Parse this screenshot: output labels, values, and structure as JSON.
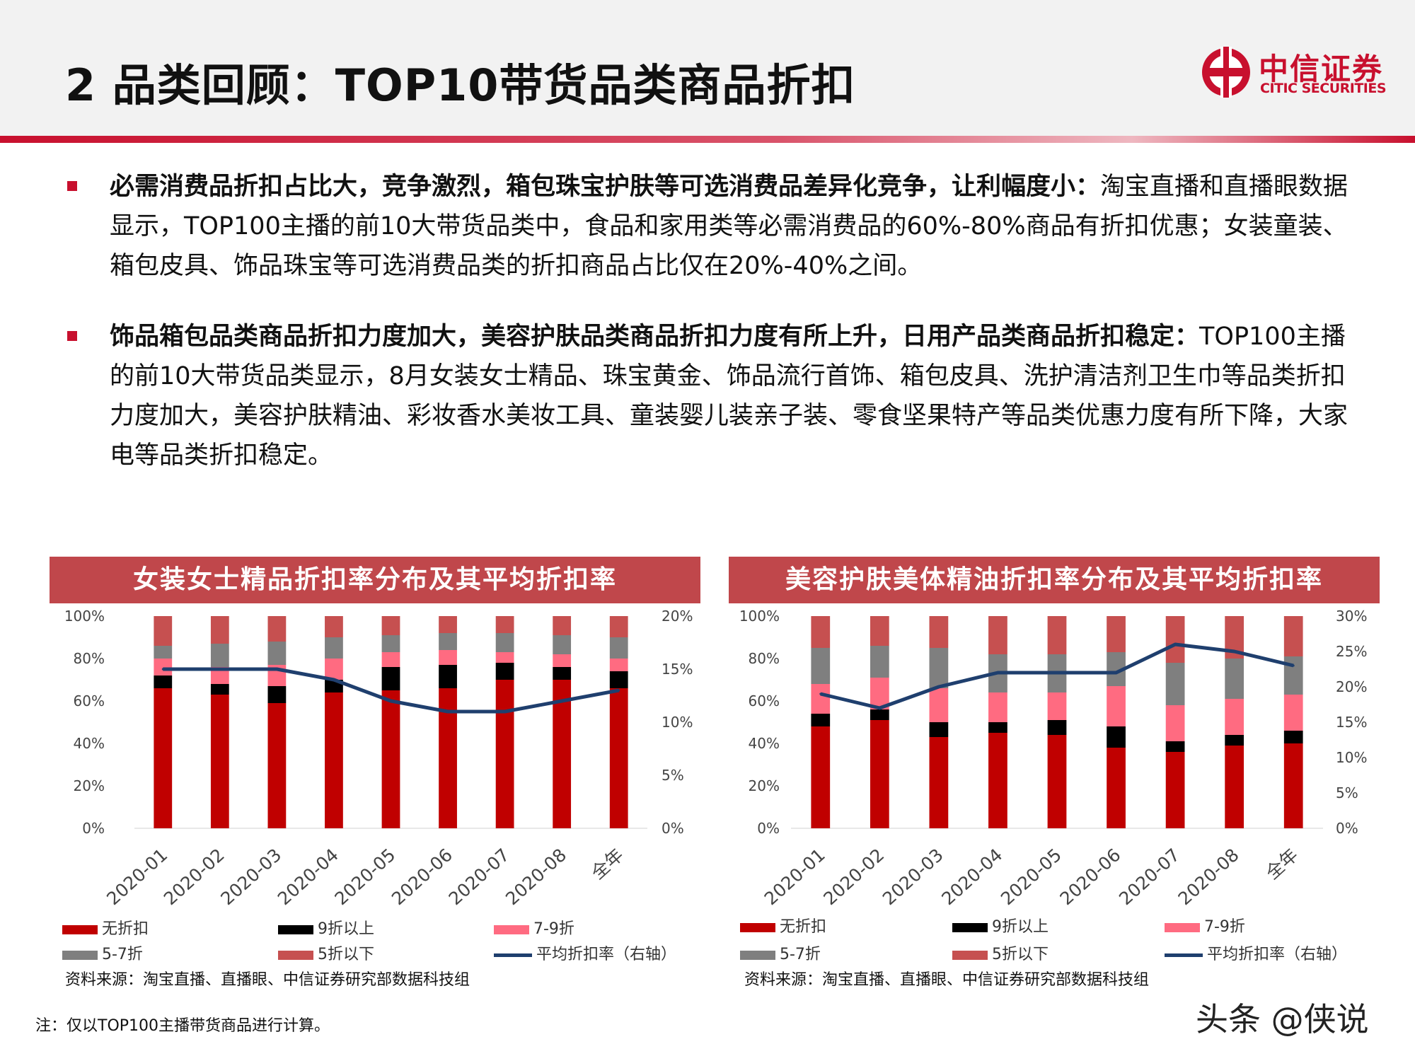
{
  "header": {
    "title": "2 品类回顾：TOP10带货品类商品折扣",
    "logo_cn": "中信证券",
    "logo_en": "CITIC SECURITIES",
    "logo_icon": "citic-logo-icon"
  },
  "bullets": [
    {
      "bold": "必需消费品折扣占比大，竞争激烈，箱包珠宝护肤等可选消费品差异化竞争，让利幅度小：",
      "text": "淘宝直播和直播眼数据显示，TOP100主播的前10大带货品类中，食品和家用类等必需消费品的60%-80%商品有折扣优惠；女装童装、箱包皮具、饰品珠宝等可选消费品类的折扣商品占比仅在20%-40%之间。"
    },
    {
      "bold": "饰品箱包品类商品折扣力度加大，美容护肤品类商品折扣力度有所上升，日用产品类商品折扣稳定：",
      "text": "TOP100主播的前10大带货品类显示，8月女装女士精品、珠宝黄金、饰品流行首饰、箱包皮具、洗护清洁剂卫生巾等品类折扣力度加大，美容护肤精油、彩妆香水美妆工具、童装婴儿装亲子装、零食坚果特产等品类优惠力度有所下降，大家电等品类折扣稳定。"
    }
  ],
  "colors": {
    "no_discount": "#c00000",
    "above_9": "#000000",
    "d7_9": "#ff6b81",
    "d5_7": "#7f7f7f",
    "below_5": "#c65050",
    "avg_line": "#1f3f6e"
  },
  "legend_labels": [
    "无折扣",
    "9折以上",
    "7-9折",
    "5-7折",
    "5折以下",
    "平均折扣率（右轴）"
  ],
  "chart_data": [
    {
      "type": "bar",
      "stacked": true,
      "title": "女装女士精品折扣率分布及其平均折扣率",
      "categories": [
        "2020-01",
        "2020-02",
        "2020-03",
        "2020-04",
        "2020-05",
        "2020-06",
        "2020-07",
        "2020-08",
        "全年"
      ],
      "series": [
        {
          "name": "无折扣",
          "values": [
            66,
            63,
            59,
            64,
            65,
            66,
            70,
            70,
            66
          ]
        },
        {
          "name": "9折以上",
          "values": [
            6,
            5,
            8,
            6,
            11,
            11,
            8,
            6,
            8
          ]
        },
        {
          "name": "7-9折",
          "values": [
            8,
            8,
            10,
            10,
            7,
            7,
            5,
            6,
            6
          ]
        },
        {
          "name": "5-7折",
          "values": [
            6,
            11,
            11,
            10,
            8,
            8,
            9,
            9,
            10
          ]
        },
        {
          "name": "5折以下",
          "values": [
            14,
            13,
            12,
            10,
            9,
            8,
            8,
            9,
            10
          ]
        }
      ],
      "line": {
        "name": "平均折扣率（右轴）",
        "values": [
          15,
          15,
          15,
          14,
          12,
          11,
          11,
          12,
          13
        ]
      },
      "left_axis": {
        "min": 0,
        "max": 100,
        "ticks": [
          "0%",
          "20%",
          "40%",
          "60%",
          "80%",
          "100%"
        ]
      },
      "right_axis": {
        "min": 0,
        "max": 20,
        "ticks": [
          "0%",
          "5%",
          "10%",
          "15%",
          "20%"
        ]
      },
      "source": "资料来源：淘宝直播、直播眼、中信证券研究部数据科技组"
    },
    {
      "type": "bar",
      "stacked": true,
      "title": "美容护肤美体精油折扣率分布及其平均折扣率",
      "categories": [
        "2020-01",
        "2020-02",
        "2020-03",
        "2020-04",
        "2020-05",
        "2020-06",
        "2020-07",
        "2020-08",
        "全年"
      ],
      "series": [
        {
          "name": "无折扣",
          "values": [
            48,
            51,
            43,
            45,
            44,
            38,
            36,
            39,
            40
          ]
        },
        {
          "name": "9折以上",
          "values": [
            6,
            5,
            7,
            5,
            7,
            10,
            5,
            5,
            6
          ]
        },
        {
          "name": "7-9折",
          "values": [
            14,
            15,
            16,
            14,
            13,
            19,
            17,
            17,
            17
          ]
        },
        {
          "name": "5-7折",
          "values": [
            17,
            15,
            19,
            18,
            18,
            16,
            20,
            19,
            18
          ]
        },
        {
          "name": "5折以下",
          "values": [
            15,
            14,
            15,
            18,
            18,
            17,
            22,
            20,
            19
          ]
        }
      ],
      "line": {
        "name": "平均折扣率（右轴）",
        "values": [
          19,
          17,
          20,
          22,
          22,
          22,
          26,
          25,
          23
        ]
      },
      "left_axis": {
        "min": 0,
        "max": 100,
        "ticks": [
          "0%",
          "20%",
          "40%",
          "60%",
          "80%",
          "100%"
        ]
      },
      "right_axis": {
        "min": 0,
        "max": 30,
        "ticks": [
          "0%",
          "5%",
          "10%",
          "15%",
          "20%",
          "25%",
          "30%"
        ]
      },
      "source": "资料来源：淘宝直播、直播眼、中信证券研究部数据科技组"
    }
  ],
  "note": "注：仅以TOP100主播带货商品进行计算。",
  "watermark": "头条 @侠说"
}
